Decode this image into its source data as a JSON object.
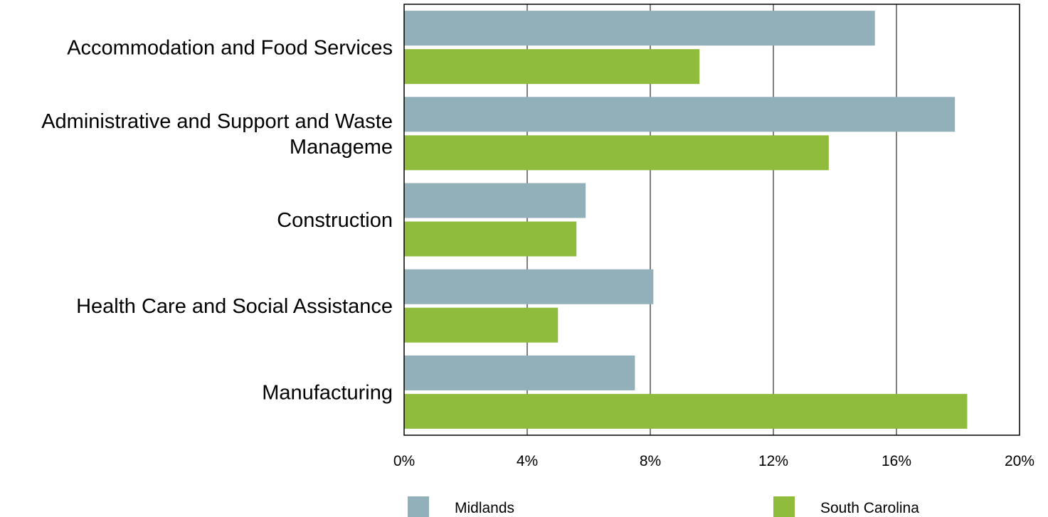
{
  "chart_data": {
    "type": "bar",
    "orientation": "horizontal",
    "title": "",
    "xlabel": "",
    "ylabel": "",
    "categories": [
      [
        "Accommodation and Food Services"
      ],
      [
        "Administrative and Support and Waste",
        "Manageme"
      ],
      [
        "Construction"
      ],
      [
        "Health Care and Social Assistance"
      ],
      [
        "Manufacturing"
      ]
    ],
    "series": [
      {
        "name": "Midlands",
        "color": "#91b0b9",
        "values": [
          15.3,
          17.9,
          5.9,
          8.1,
          7.5
        ]
      },
      {
        "name": "South Carolina",
        "color": "#8fbc3c",
        "values": [
          9.6,
          13.8,
          5.6,
          5.0,
          18.3
        ]
      }
    ],
    "xlim": [
      0,
      20
    ],
    "xticks": [
      0,
      4,
      8,
      12,
      16,
      20
    ],
    "tick_suffix": "%",
    "grid": "vertical",
    "legend_position": "bottom"
  }
}
